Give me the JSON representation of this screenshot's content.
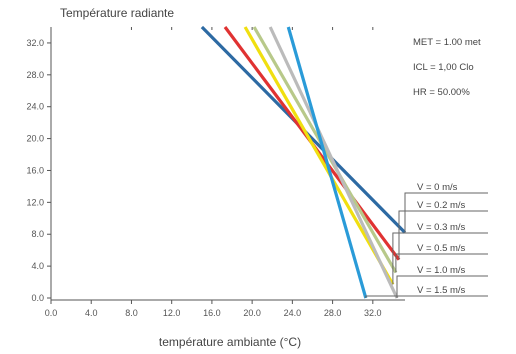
{
  "chart_data": {
    "type": "line",
    "title": "Température radiante",
    "xlabel": "température ambiante (°C)",
    "ylabel": "",
    "xlim": [
      0,
      35.2
    ],
    "ylim": [
      0,
      34
    ],
    "x_ticks": [
      "0.0",
      "4.0",
      "8.0",
      "12.0",
      "16.0",
      "20.0",
      "24.0",
      "28.0",
      "32.0"
    ],
    "y_ticks": [
      "0.0",
      "4.0",
      "8.0",
      "12.0",
      "16.0",
      "20.0",
      "24.0",
      "28.0",
      "32.0"
    ],
    "grid": false,
    "annotations": [
      "MET = 1.00 met",
      "ICL = 1,00 Clo",
      "HR = 50.00%"
    ],
    "legend_position": "right",
    "series": [
      {
        "name": "V = 0 m/s",
        "color": "#2d6aa3",
        "x": [
          15.0,
          35.2
        ],
        "y": [
          34.0,
          8.2
        ]
      },
      {
        "name": "V = 0.2 m/s",
        "color": "#e03232",
        "x": [
          17.3,
          34.6
        ],
        "y": [
          34.0,
          4.8
        ]
      },
      {
        "name": "V = 0.3 m/s",
        "color": "#f0df10",
        "x": [
          19.3,
          34.0
        ],
        "y": [
          34.0,
          1.7
        ]
      },
      {
        "name": "V = 0.5 m/s",
        "color": "#b8c98a",
        "x": [
          20.2,
          34.3
        ],
        "y": [
          34.0,
          3.2
        ]
      },
      {
        "name": "V = 1.0 m/s",
        "color": "#bbbbbb",
        "x": [
          21.8,
          34.4
        ],
        "y": [
          34.0,
          0.0
        ]
      },
      {
        "name": "V = 1.5 m/s",
        "color": "#2a9bd8",
        "x": [
          23.6,
          31.3
        ],
        "y": [
          34.0,
          0.0
        ]
      }
    ]
  }
}
